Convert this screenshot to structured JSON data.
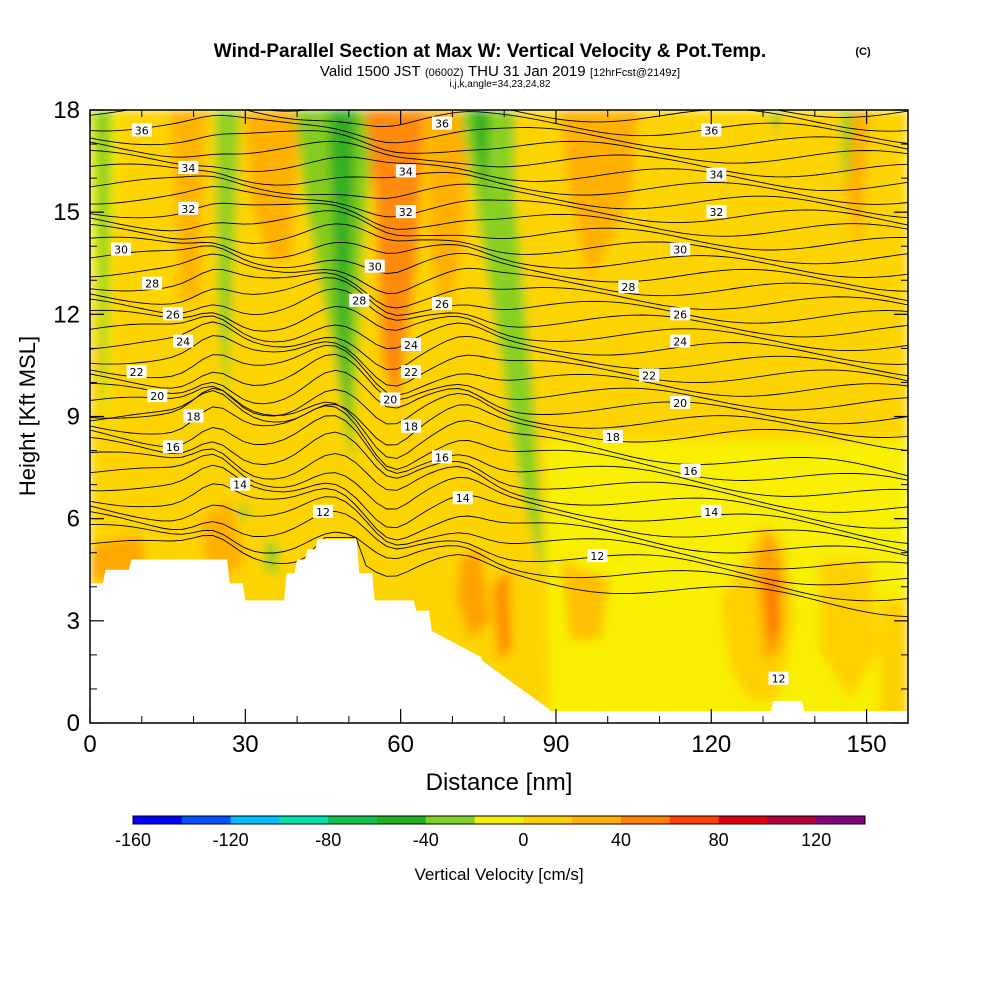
{
  "chart_data": {
    "type": "heatmap",
    "title": "Wind-Parallel Section at Max W: Vertical Velocity & Pot.Temp.",
    "title_mark": "(C)",
    "subtitle": {
      "valid": "Valid 1500 JST",
      "utc": "(0600Z)",
      "date": "THU 31 Jan 2019",
      "forecast": "[12hrFcst@2149z]"
    },
    "subtitle2": "i,j,k,angle=34,23,24,82",
    "xlabel": "Distance [nm]",
    "ylabel": "Height [Kft MSL]",
    "xlim": [
      0,
      158
    ],
    "ylim": [
      0,
      18
    ],
    "x_ticks": [
      "0",
      "30",
      "60",
      "90",
      "120",
      "150"
    ],
    "y_ticks": [
      "0",
      "3",
      "6",
      "9",
      "12",
      "15",
      "18"
    ],
    "colorbar": {
      "label": "Vertical Velocity [cm/s]",
      "tick_labels": [
        "-160",
        "-120",
        "-80",
        "-40",
        "0",
        "40",
        "80",
        "120"
      ],
      "tick_values": [
        -160,
        -120,
        -80,
        -40,
        0,
        40,
        80,
        120
      ],
      "range": [
        -160,
        140
      ],
      "colors": [
        "#0000ff",
        "#0050ff",
        "#00c0ff",
        "#00e0b0",
        "#10c050",
        "#20b020",
        "#80d020",
        "#f0f000",
        "#ffd000",
        "#ffb000",
        "#ff8000",
        "#ff4000",
        "#e00010",
        "#b00040",
        "#800080"
      ]
    },
    "theta_contour_labels": [
      {
        "x": 10,
        "y": 17.4,
        "text": "36"
      },
      {
        "x": 68,
        "y": 17.6,
        "text": "36"
      },
      {
        "x": 120,
        "y": 17.4,
        "text": "36"
      },
      {
        "x": 19,
        "y": 16.3,
        "text": "34"
      },
      {
        "x": 61,
        "y": 16.2,
        "text": "34"
      },
      {
        "x": 121,
        "y": 16.1,
        "text": "34"
      },
      {
        "x": 19,
        "y": 15.1,
        "text": "32"
      },
      {
        "x": 61,
        "y": 15.0,
        "text": "32"
      },
      {
        "x": 121,
        "y": 15.0,
        "text": "32"
      },
      {
        "x": 6,
        "y": 13.9,
        "text": "30"
      },
      {
        "x": 55,
        "y": 13.4,
        "text": "30"
      },
      {
        "x": 114,
        "y": 13.9,
        "text": "30"
      },
      {
        "x": 12,
        "y": 12.9,
        "text": "28"
      },
      {
        "x": 52,
        "y": 12.4,
        "text": "28"
      },
      {
        "x": 104,
        "y": 12.8,
        "text": "28"
      },
      {
        "x": 16,
        "y": 12.0,
        "text": "26"
      },
      {
        "x": 68,
        "y": 12.3,
        "text": "26"
      },
      {
        "x": 114,
        "y": 12.0,
        "text": "26"
      },
      {
        "x": 18,
        "y": 11.2,
        "text": "24"
      },
      {
        "x": 62,
        "y": 11.1,
        "text": "24"
      },
      {
        "x": 114,
        "y": 11.2,
        "text": "24"
      },
      {
        "x": 9,
        "y": 10.3,
        "text": "22"
      },
      {
        "x": 62,
        "y": 10.3,
        "text": "22"
      },
      {
        "x": 108,
        "y": 10.2,
        "text": "22"
      },
      {
        "x": 13,
        "y": 9.6,
        "text": "20"
      },
      {
        "x": 58,
        "y": 9.5,
        "text": "20"
      },
      {
        "x": 114,
        "y": 9.4,
        "text": "20"
      },
      {
        "x": 20,
        "y": 9.0,
        "text": "18"
      },
      {
        "x": 62,
        "y": 8.7,
        "text": "18"
      },
      {
        "x": 101,
        "y": 8.4,
        "text": "18"
      },
      {
        "x": 16,
        "y": 8.1,
        "text": "16"
      },
      {
        "x": 68,
        "y": 7.8,
        "text": "16"
      },
      {
        "x": 116,
        "y": 7.4,
        "text": "16"
      },
      {
        "x": 29,
        "y": 7.0,
        "text": "14"
      },
      {
        "x": 72,
        "y": 6.6,
        "text": "14"
      },
      {
        "x": 120,
        "y": 6.2,
        "text": "14"
      },
      {
        "x": 45,
        "y": 6.2,
        "text": "12"
      },
      {
        "x": 98,
        "y": 4.9,
        "text": "12"
      },
      {
        "x": 133,
        "y": 1.3,
        "text": "12"
      }
    ]
  }
}
